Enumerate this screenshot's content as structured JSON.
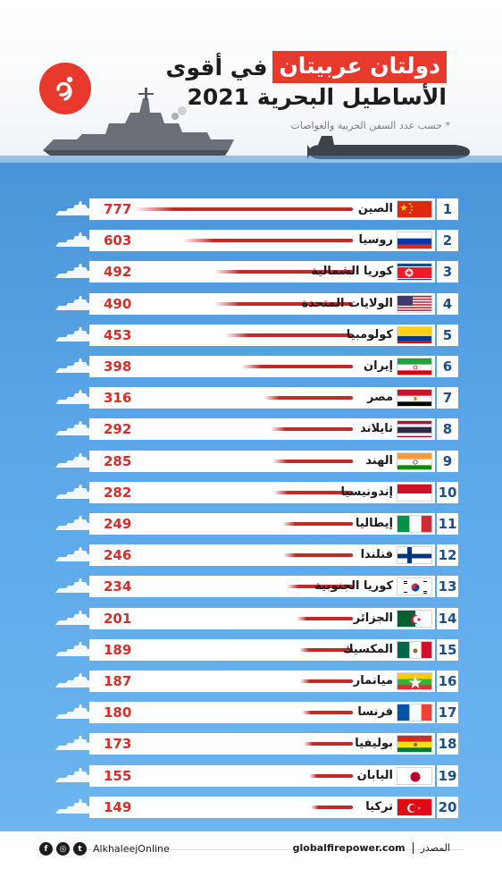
{
  "header": {
    "title_highlight": "دولتان عربيتان",
    "title_rest": "في أقوى",
    "title_line2": "الأساطيل البحرية 2021",
    "subtitle": "* حسب عدد السفن الحربية والغواصات"
  },
  "footer": {
    "handle": "AlkhaleejOnline",
    "source_label": "المصدر",
    "source_value": "globalfirepower.com"
  },
  "colors": {
    "accent_red": "#e8392d",
    "value_red": "#d42f29",
    "rank_blue": "#1b4f8a",
    "water": "#5aa6e8"
  },
  "chart_data": {
    "type": "bar",
    "orientation": "horizontal",
    "ranks": [
      "1",
      "2",
      "3",
      "4",
      "5",
      "6",
      "7",
      "8",
      "9",
      "10",
      "11",
      "12",
      "13",
      "14",
      "15",
      "16",
      "17",
      "18",
      "19",
      "20"
    ],
    "categories": [
      "الصين",
      "روسيا",
      "كوريا الشمالية",
      "الولايات المتحدة",
      "كولومبيا",
      "إيران",
      "مصر",
      "تايلاند",
      "الهند",
      "إندونيسيا",
      "إيطاليا",
      "فنلندا",
      "كوريا الجنوبية",
      "الجزائر",
      "المكسيك",
      "ميانمار",
      "فرنسا",
      "بوليفيا",
      "اليابان",
      "تركيا"
    ],
    "values": [
      777,
      603,
      492,
      490,
      453,
      398,
      316,
      292,
      285,
      282,
      249,
      246,
      234,
      201,
      189,
      187,
      180,
      173,
      155,
      149
    ],
    "flags": [
      "china-flag-icon",
      "russia-flag-icon",
      "north-korea-flag-icon",
      "usa-flag-icon",
      "colombia-flag-icon",
      "iran-flag-icon",
      "egypt-flag-icon",
      "thailand-flag-icon",
      "india-flag-icon",
      "indonesia-flag-icon",
      "italy-flag-icon",
      "finland-flag-icon",
      "south-korea-flag-icon",
      "algeria-flag-icon",
      "mexico-flag-icon",
      "myanmar-flag-icon",
      "france-flag-icon",
      "bolivia-flag-icon",
      "japan-flag-icon",
      "turkey-flag-icon"
    ],
    "xlim": [
      0,
      777
    ],
    "grid": false,
    "legend": "none"
  }
}
